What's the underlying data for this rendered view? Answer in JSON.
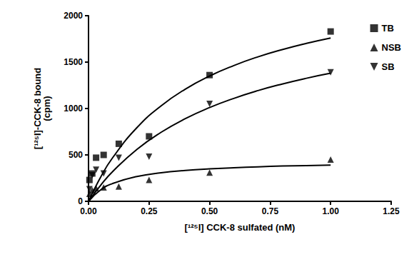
{
  "chart_data": {
    "type": "scatter",
    "x_label": "[¹²⁵I] CCK-8 sulfated (nM)",
    "y_label": "[¹²⁵I]-CCK-8 bound\n(cpm)",
    "x": [
      0.0039,
      0.0156,
      0.03125,
      0.0625,
      0.125,
      0.25,
      0.5,
      1
    ],
    "fit_x": [
      0,
      0.05,
      0.1,
      0.2,
      0.3,
      0.4,
      0.5,
      0.6,
      0.7,
      0.8,
      0.9,
      1.0
    ],
    "series": [
      {
        "name": "TB",
        "color": "#000000",
        "marker": "square",
        "values": [
          230,
          300,
          470,
          500,
          620,
          700,
          1360,
          1830
        ],
        "fit": [
          0,
          260,
          471,
          794,
          1029,
          1209,
          1350,
          1463,
          1557,
          1635,
          1702,
          1760
        ]
      },
      {
        "name": "NSB",
        "color": "#000000",
        "marker": "triangle",
        "values": [
          80,
          120,
          140,
          150,
          160,
          230,
          310,
          450
        ],
        "fit": [
          0,
          123,
          192,
          267,
          308,
          333,
          350,
          362,
          372,
          380,
          385,
          390
        ]
      },
      {
        "name": "SB",
        "color": "#000000",
        "marker": "triangle-down",
        "values": [
          130,
          280,
          340,
          300,
          470,
          480,
          1050,
          1390
        ],
        "fit": [
          0,
          173,
          321,
          560,
          744,
          891,
          1010,
          1109,
          1193,
          1264,
          1326,
          1380
        ]
      }
    ],
    "xlim": [
      0,
      1.25
    ],
    "xticks": [
      {
        "value": 0,
        "label": "0.00"
      },
      0.25,
      {
        "value": 0.5,
        "label": "0.50"
      },
      0.75,
      {
        "value": 1,
        "label": "1.00"
      },
      1.25
    ],
    "ylim": [
      0,
      2000
    ],
    "yticks": [
      0,
      500,
      1000,
      1500,
      2000
    ],
    "grid": false,
    "legend": "top-right"
  }
}
